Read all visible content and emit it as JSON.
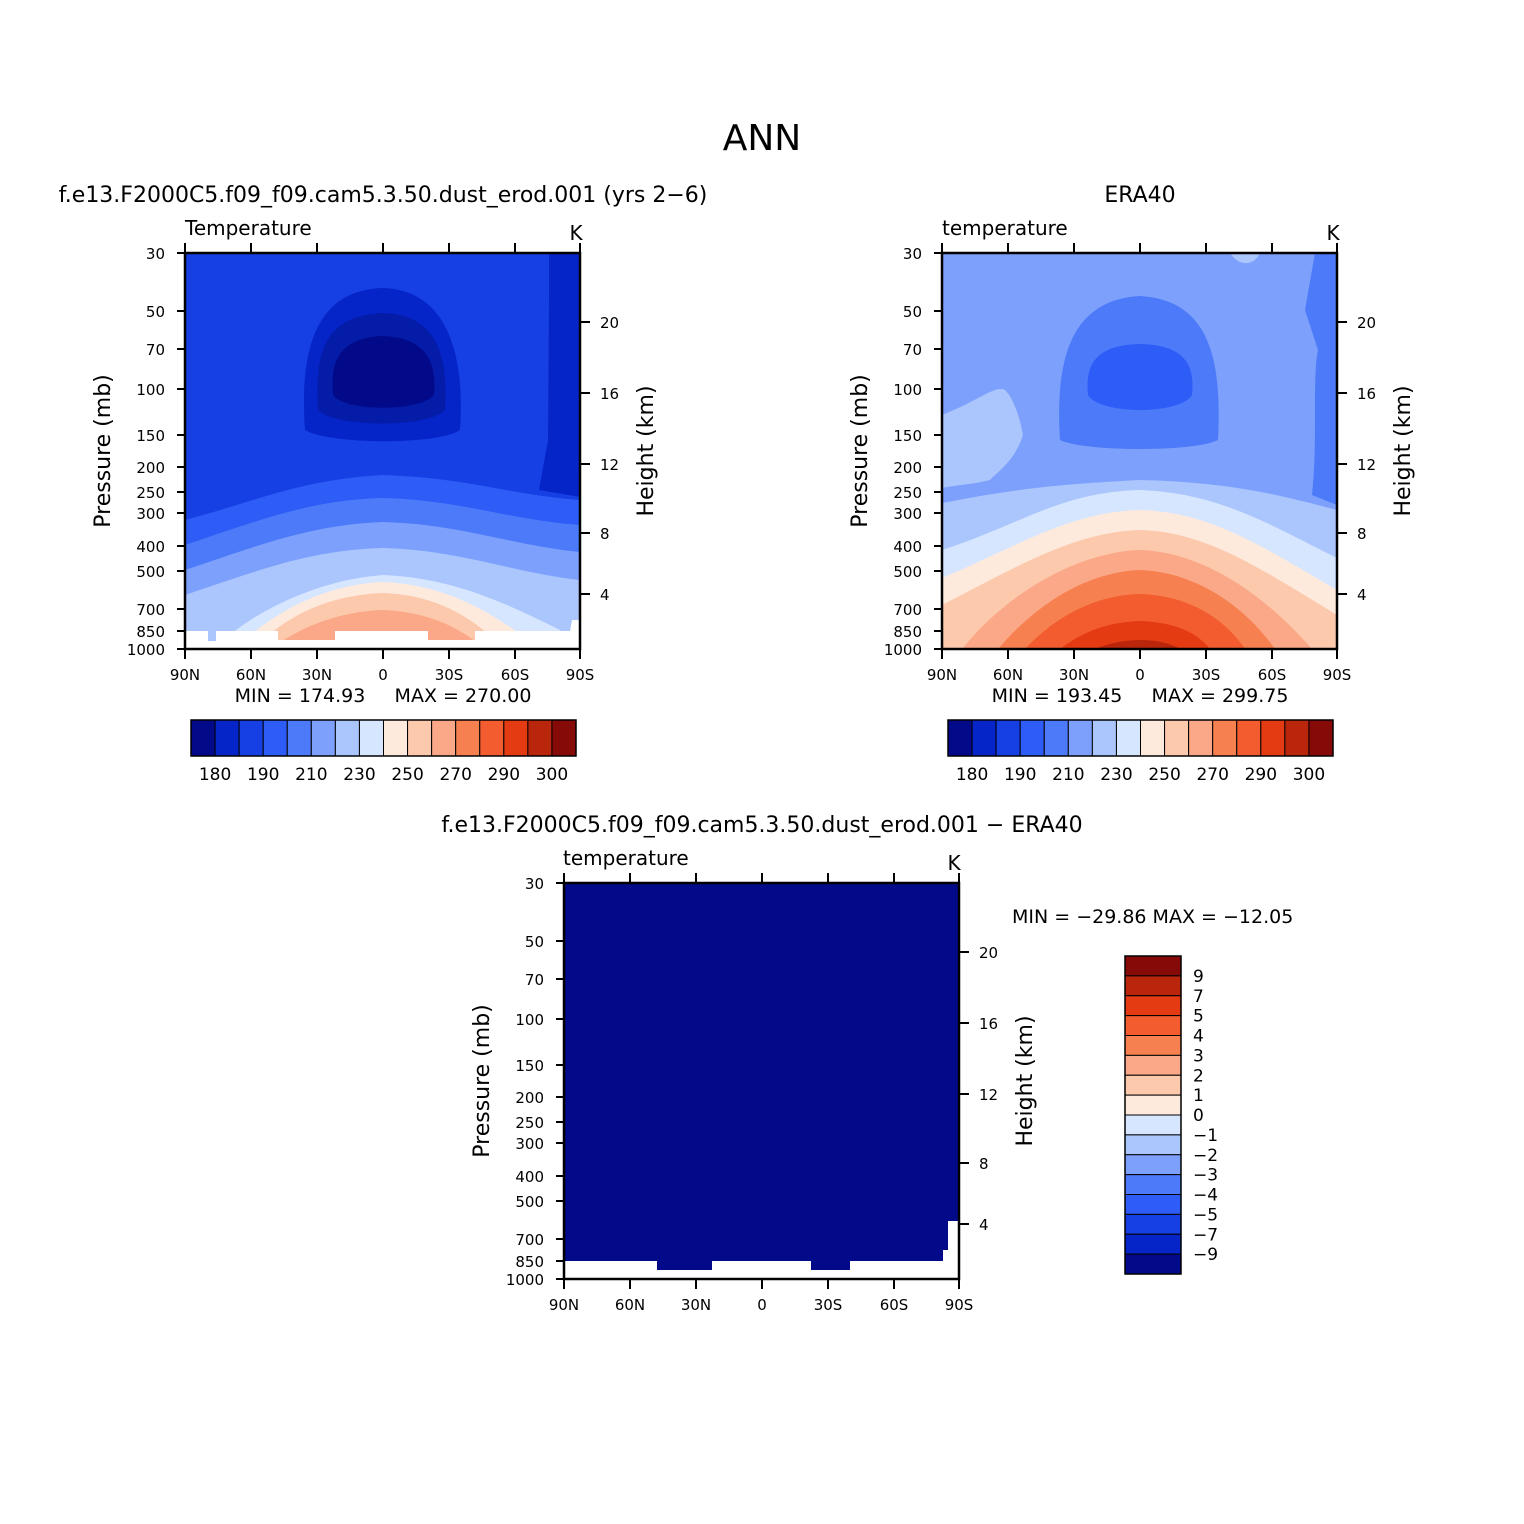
{
  "figure": {
    "main_title": "ANN",
    "colorbar_levels": [
      "180",
      "190",
      "210",
      "230",
      "250",
      "270",
      "290",
      "300"
    ],
    "colorbar_colors": [
      "#020a8a",
      "#0525c9",
      "#1640e4",
      "#2e5cf7",
      "#4c7af8",
      "#7ca0fb",
      "#abc5fd",
      "#d6e6ff",
      "#feeadc",
      "#fcc9ad",
      "#faa888",
      "#f6804f",
      "#f25c2f",
      "#e43b12",
      "#b9260c",
      "#860a08"
    ],
    "diff_colorbar_levels": [
      "9",
      "7",
      "5",
      "4",
      "3",
      "2",
      "1",
      "0",
      "−1",
      "−2",
      "−3",
      "−4",
      "−5",
      "−7",
      "−9"
    ],
    "diff_colorbar_colors": [
      "#860a08",
      "#b9260c",
      "#e43b12",
      "#f25c2f",
      "#f6804f",
      "#faa888",
      "#fcc9ad",
      "#feeadc",
      "#d6e6ff",
      "#abc5fd",
      "#7ca0fb",
      "#4c7af8",
      "#2e5cf7",
      "#1640e4",
      "#0525c9",
      "#020a8a"
    ]
  },
  "chart_data": [
    {
      "type": "heatmap",
      "title": "f.e13.F2000C5.f09_f09.cam5.3.50.dust_erod.001 (yrs 2−6)",
      "variable": "Temperature",
      "units": "K",
      "xlabel": "",
      "ylabel": "Pressure (mb)",
      "ylabel_right": "Height (km)",
      "x_ticks": [
        "90N",
        "60N",
        "30N",
        "0",
        "30S",
        "60S",
        "90S"
      ],
      "y_ticks": [
        "30",
        "50",
        "70",
        "100",
        "150",
        "200",
        "250",
        "300",
        "400",
        "500",
        "700",
        "850",
        "1000"
      ],
      "y_right_ticks": [
        "20",
        "16",
        "12",
        "8",
        "4"
      ],
      "ylim": [
        1000,
        30
      ],
      "min_label": "MIN = 174.93",
      "max_label": "MAX = 270.00",
      "min": 174.93,
      "max": 270.0
    },
    {
      "type": "heatmap",
      "title": "ERA40",
      "variable": "temperature",
      "units": "K",
      "xlabel": "",
      "ylabel": "Pressure (mb)",
      "ylabel_right": "Height (km)",
      "x_ticks": [
        "90N",
        "60N",
        "30N",
        "0",
        "30S",
        "60S",
        "90S"
      ],
      "y_ticks": [
        "30",
        "50",
        "70",
        "100",
        "150",
        "200",
        "250",
        "300",
        "400",
        "500",
        "700",
        "850",
        "1000"
      ],
      "y_right_ticks": [
        "20",
        "16",
        "12",
        "8",
        "4"
      ],
      "ylim": [
        1000,
        30
      ],
      "min_label": "MIN = 193.45",
      "max_label": "MAX = 299.75",
      "min": 193.45,
      "max": 299.75
    },
    {
      "type": "heatmap",
      "title": "f.e13.F2000C5.f09_f09.cam5.3.50.dust_erod.001 − ERA40",
      "variable": "temperature",
      "units": "K",
      "xlabel": "",
      "ylabel": "Pressure (mb)",
      "ylabel_right": "Height (km)",
      "x_ticks": [
        "90N",
        "60N",
        "30N",
        "0",
        "30S",
        "60S",
        "90S"
      ],
      "y_ticks": [
        "30",
        "50",
        "70",
        "100",
        "150",
        "200",
        "250",
        "300",
        "400",
        "500",
        "700",
        "850",
        "1000"
      ],
      "y_right_ticks": [
        "20",
        "16",
        "12",
        "8",
        "4"
      ],
      "ylim": [
        1000,
        30
      ],
      "minmax_label": "MIN = −29.86   MAX = −12.05",
      "min": -29.86,
      "max": -12.05
    }
  ]
}
